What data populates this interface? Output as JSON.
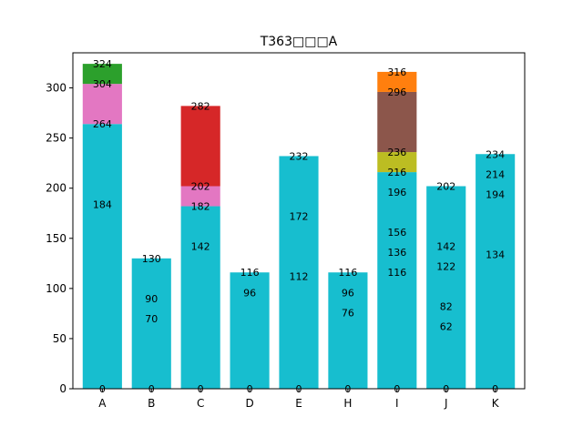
{
  "chart_data": {
    "type": "bar",
    "title": "T363□□□A",
    "xlabel": "",
    "ylabel": "",
    "ylim": [
      0,
      335
    ],
    "yticks": [
      0,
      50,
      100,
      150,
      200,
      250,
      300
    ],
    "categories": [
      "A",
      "B",
      "C",
      "D",
      "E",
      "H",
      "I",
      "J",
      "K"
    ],
    "colors": {
      "base": "#17becf",
      "pink": "#e377c2",
      "green": "#2ca02c",
      "red": "#d62728",
      "olive": "#bcbd22",
      "brown": "#8c564b",
      "orange": "#ff7f0e"
    },
    "segments": [
      {
        "category": "A",
        "from": 0,
        "to": 264,
        "color": "base"
      },
      {
        "category": "A",
        "from": 264,
        "to": 304,
        "color": "pink"
      },
      {
        "category": "A",
        "from": 304,
        "to": 324,
        "color": "green"
      },
      {
        "category": "B",
        "from": 0,
        "to": 130,
        "color": "base"
      },
      {
        "category": "C",
        "from": 0,
        "to": 182,
        "color": "base"
      },
      {
        "category": "C",
        "from": 182,
        "to": 202,
        "color": "pink"
      },
      {
        "category": "C",
        "from": 202,
        "to": 282,
        "color": "red"
      },
      {
        "category": "D",
        "from": 0,
        "to": 116,
        "color": "base"
      },
      {
        "category": "E",
        "from": 0,
        "to": 232,
        "color": "base"
      },
      {
        "category": "H",
        "from": 0,
        "to": 116,
        "color": "base"
      },
      {
        "category": "I",
        "from": 0,
        "to": 216,
        "color": "base"
      },
      {
        "category": "I",
        "from": 216,
        "to": 236,
        "color": "olive"
      },
      {
        "category": "I",
        "from": 236,
        "to": 296,
        "color": "brown"
      },
      {
        "category": "I",
        "from": 296,
        "to": 316,
        "color": "orange"
      },
      {
        "category": "J",
        "from": 0,
        "to": 202,
        "color": "base"
      },
      {
        "category": "K",
        "from": 0,
        "to": 234,
        "color": "base"
      }
    ],
    "labels": {
      "A": [
        0,
        184,
        264,
        304,
        324
      ],
      "B": [
        0,
        70,
        90,
        130
      ],
      "C": [
        0,
        142,
        182,
        202,
        282
      ],
      "D": [
        0,
        96,
        116
      ],
      "E": [
        0,
        112,
        172,
        232
      ],
      "H": [
        0,
        76,
        96,
        116
      ],
      "I": [
        0,
        116,
        136,
        156,
        196,
        216,
        236,
        296,
        316
      ],
      "J": [
        0,
        62,
        82,
        122,
        142,
        202
      ],
      "K": [
        0,
        134,
        194,
        214,
        234
      ]
    }
  }
}
